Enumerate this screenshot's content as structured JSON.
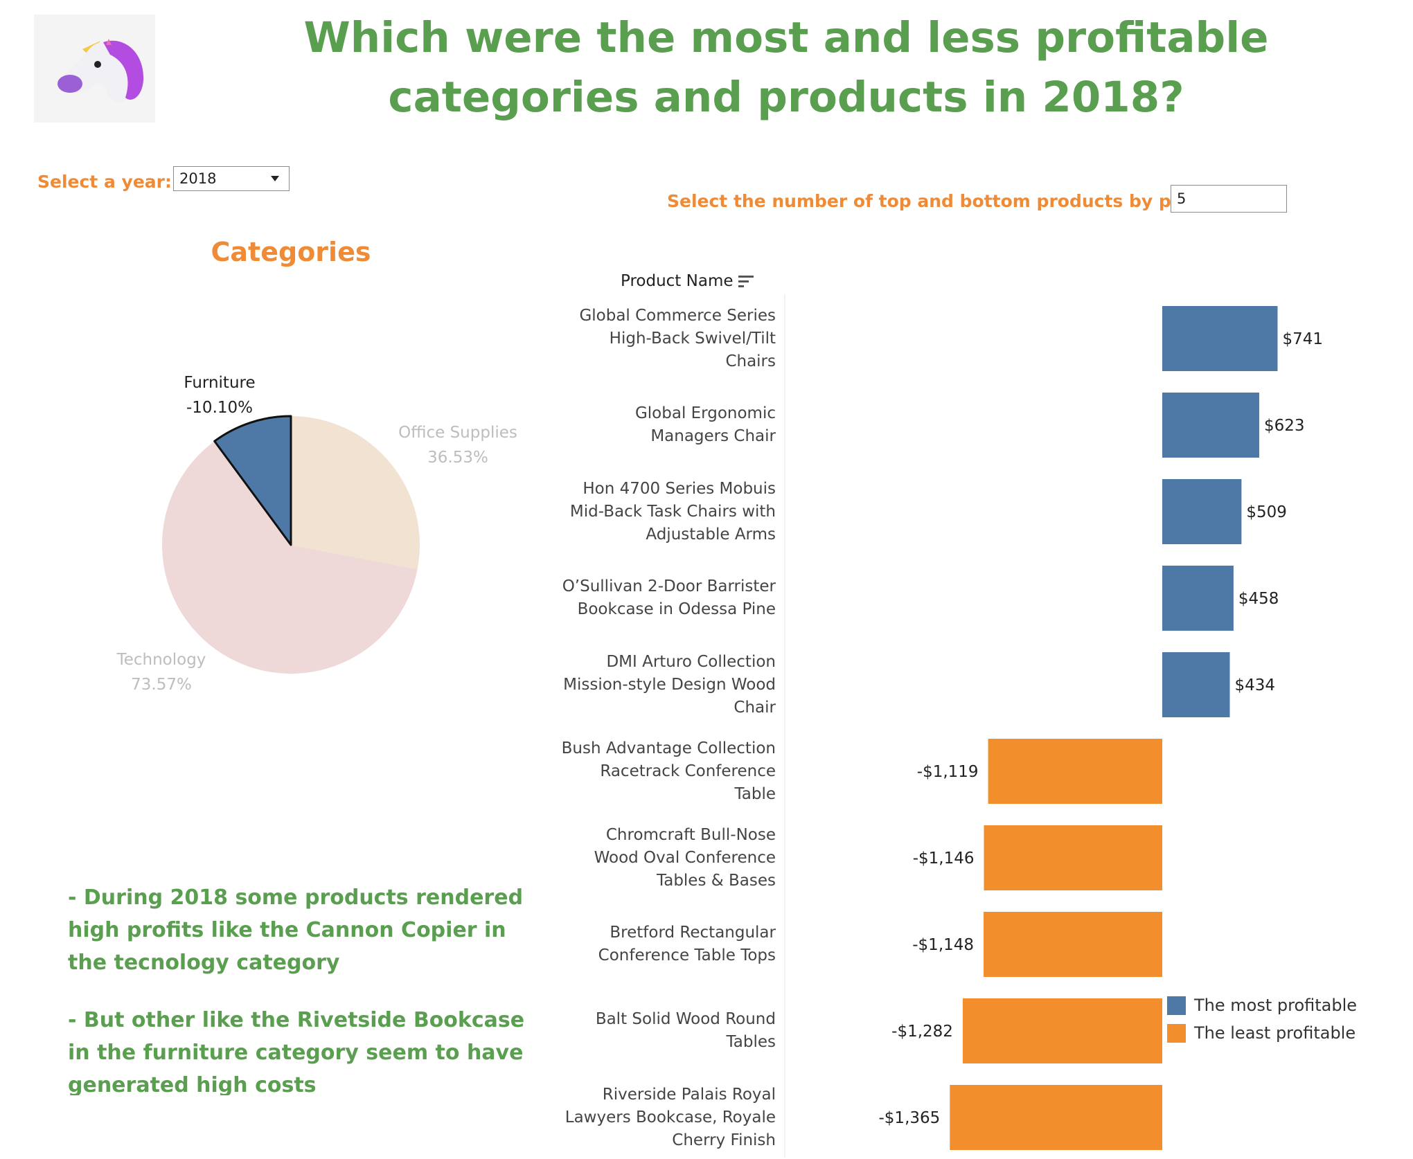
{
  "title": "Which were the most and less profitable categories and products in 2018?",
  "filters": {
    "year_label": "Select a year:",
    "year_value": "2018",
    "topn_label": "Select the number of top and bottom products by profit:",
    "topn_value": "5"
  },
  "pie": {
    "title": "Categories",
    "slices": [
      {
        "name": "Furniture",
        "value": "-10.10%",
        "share": 0.101,
        "color": "#4e79a7"
      },
      {
        "name": "Office Supplies",
        "value": "36.53%",
        "share": 0.2806,
        "color": "#f2e2d2"
      },
      {
        "name": "Technology",
        "value": "73.57%",
        "share": 0.6184,
        "color": "#eed8d8"
      }
    ]
  },
  "commentary": [
    "- During 2018 some products rendered high profits like the Cannon Copier in the tecnology category",
    "- But other like the Rivetside Bookcase in the furniture category seem to have generated high costs"
  ],
  "chart_data": {
    "type": "bar",
    "orientation": "horizontal",
    "column_header": "Product Name",
    "categories": [
      "Global Commerce Series High-Back Swivel/Tilt Chairs",
      "Global Ergonomic Managers Chair",
      "Hon 4700 Series Mobuis Mid-Back Task Chairs with Adjustable Arms",
      "O'Sullivan 2-Door Barrister Bookcase in Odessa Pine",
      "DMI Arturo Collection Mission-style Design Wood Chair",
      "Bush Advantage Collection Racetrack Conference Table",
      "Chromcraft Bull-Nose Wood Oval Conference Tables & Bases",
      "Bretford Rectangular Conference Table Tops",
      "Balt Solid Wood Round Tables",
      "Riverside Palais Royal Lawyers Bookcase, Royale Cherry Finish"
    ],
    "category_lines": [
      [
        "Global Commerce Series",
        "High-Back Swivel/Tilt",
        "Chairs"
      ],
      [
        "Global Ergonomic",
        "Managers Chair"
      ],
      [
        "Hon 4700 Series Mobuis",
        "Mid-Back Task Chairs with",
        "Adjustable Arms"
      ],
      [
        "O’Sullivan 2-Door Barrister",
        "Bookcase in Odessa Pine"
      ],
      [
        "DMI Arturo Collection",
        "Mission-style Design Wood",
        "Chair"
      ],
      [
        "Bush Advantage Collection",
        "Racetrack Conference",
        "Table"
      ],
      [
        "Chromcraft Bull-Nose",
        "Wood Oval Conference",
        "Tables & Bases"
      ],
      [
        "Bretford Rectangular",
        "Conference Table Tops"
      ],
      [
        "Balt Solid Wood Round",
        "Tables"
      ],
      [
        "Riverside Palais Royal",
        "Lawyers Bookcase, Royale",
        "Cherry Finish"
      ]
    ],
    "values": [
      741,
      623,
      509,
      458,
      434,
      -1119,
      -1146,
      -1148,
      -1282,
      -1365
    ],
    "value_labels": [
      "$741",
      "$623",
      "$509",
      "$458",
      "$434",
      "-$1,119",
      "-$1,146",
      "-$1,148",
      "-$1,282",
      "-$1,365"
    ],
    "groups": [
      "most",
      "most",
      "most",
      "most",
      "most",
      "least",
      "least",
      "least",
      "least",
      "least"
    ],
    "colors": {
      "most": "#4e79a7",
      "least": "#f28e2b"
    },
    "legend": [
      {
        "label": "The most profitable",
        "color": "#4e79a7"
      },
      {
        "label": "The least profitable",
        "color": "#f28e2b"
      }
    ],
    "legend_position": "bottom-right"
  }
}
